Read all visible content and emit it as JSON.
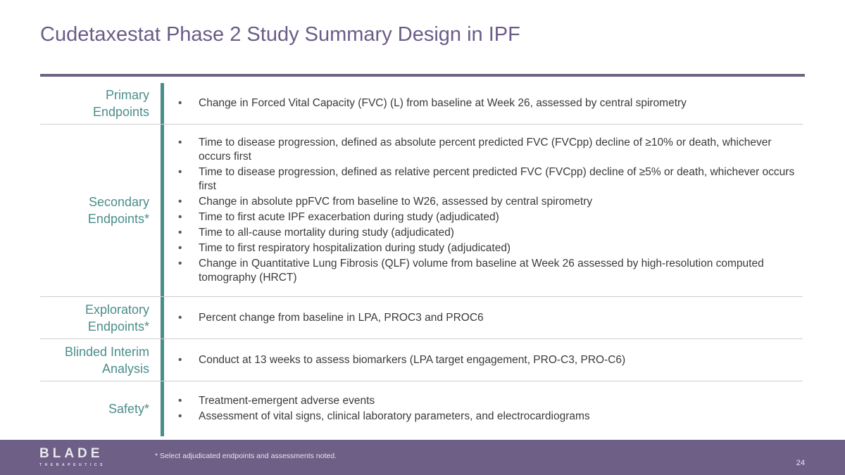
{
  "title": "Cudetaxestat Phase 2 Study Summary Design in IPF",
  "rows": [
    {
      "label": [
        "Primary",
        "Endpoints"
      ],
      "items": [
        "Change in Forced Vital Capacity (FVC) (L) from baseline at Week 26, assessed by central spirometry"
      ]
    },
    {
      "label": [
        "Secondary",
        "Endpoints*"
      ],
      "items": [
        "Time to disease progression, defined as absolute percent predicted FVC (FVCpp) decline of ≥10% or death, whichever occurs first",
        "Time to disease progression, defined as relative percent predicted FVC (FVCpp) decline of ≥5% or death, whichever occurs first",
        "Change in absolute ppFVC from baseline to W26, assessed by central spirometry",
        "Time to first acute IPF exacerbation during study (adjudicated)",
        "Time to all-cause mortality during study (adjudicated)",
        "Time to first respiratory hospitalization during study (adjudicated)",
        "Change in Quantitative Lung Fibrosis (QLF) volume from baseline at Week 26 assessed by high-resolution computed tomography (HRCT)"
      ]
    },
    {
      "label": [
        "Exploratory",
        "Endpoints*"
      ],
      "items": [
        "Percent change from baseline in LPA, PROC3 and PROC6"
      ]
    },
    {
      "label": [
        "Blinded Interim",
        "Analysis"
      ],
      "items": [
        "Conduct at 13 weeks to assess biomarkers (LPA target engagement, PRO-C3, PRO-C6)"
      ]
    },
    {
      "label": [
        "Safety*"
      ],
      "items": [
        "Treatment-emergent adverse events",
        "Assessment of vital signs, clinical laboratory parameters, and electrocardiograms"
      ]
    }
  ],
  "footer": {
    "logo": "BLADE",
    "logo_sub": "THERAPEUTICS",
    "note": "* Select adjudicated endpoints and assessments noted.",
    "page": "24"
  },
  "colors": {
    "title": "#6b5c88",
    "accent": "#4a8e8c",
    "footer": "#6e5f86"
  }
}
